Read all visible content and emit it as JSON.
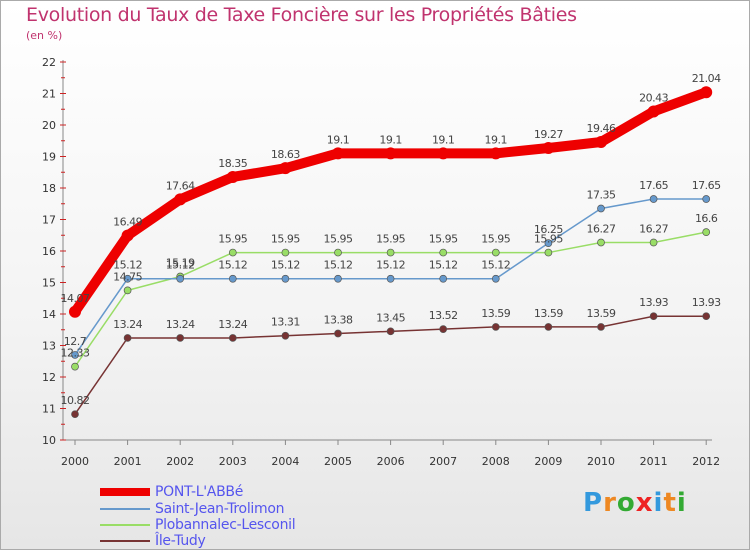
{
  "chart_data": {
    "type": "line",
    "title": "Evolution du Taux de Taxe Foncière sur les Propriétés Bâties",
    "ylabel": "(en %)",
    "xlabel": "",
    "categories": [
      "2000",
      "2001",
      "2002",
      "2003",
      "2004",
      "2005",
      "2006",
      "2007",
      "2008",
      "2009",
      "2010",
      "2011",
      "2012"
    ],
    "yticks": [
      "10",
      "11",
      "12",
      "13",
      "14",
      "15",
      "16",
      "17",
      "18",
      "19",
      "20",
      "21",
      "22"
    ],
    "ylim": [
      10,
      22
    ],
    "series": [
      {
        "name": "PONT-L'ABBé",
        "color": "#ee0000",
        "values": [
          14.07,
          16.49,
          17.64,
          18.35,
          18.63,
          19.1,
          19.1,
          19.1,
          19.1,
          19.27,
          19.46,
          20.43,
          21.04
        ],
        "labels": [
          "14.07",
          "16.49",
          "17.64",
          "18.35",
          "18.63",
          "19.1",
          "19.1",
          "19.1",
          "19.1",
          "19.27",
          "19.46",
          "20.43",
          "21.04"
        ]
      },
      {
        "name": "Saint-Jean-Trolimon",
        "color": "#6699cc",
        "values": [
          12.7,
          15.12,
          15.12,
          15.12,
          15.12,
          15.12,
          15.12,
          15.12,
          15.12,
          16.25,
          17.35,
          17.65,
          17.65
        ],
        "labels": [
          "12.7",
          "15.12",
          "15.12",
          "15.12",
          "15.12",
          "15.12",
          "15.12",
          "15.12",
          "15.12",
          "16.25",
          "17.35",
          "17.65",
          "17.65"
        ]
      },
      {
        "name": "Plobannalec-Lesconil",
        "color": "#99dd66",
        "values": [
          12.33,
          14.75,
          15.19,
          15.95,
          15.95,
          15.95,
          15.95,
          15.95,
          15.95,
          15.95,
          16.27,
          16.27,
          16.6
        ],
        "labels": [
          "12.33",
          "14.75",
          "15.19",
          "15.95",
          "15.95",
          "15.95",
          "15.95",
          "15.95",
          "15.95",
          "15.95",
          "16.27",
          "16.27",
          "16.6"
        ]
      },
      {
        "name": "Île-Tudy",
        "color": "#773333",
        "values": [
          10.82,
          13.24,
          13.24,
          13.24,
          13.31,
          13.38,
          13.45,
          13.52,
          13.59,
          13.59,
          13.59,
          13.93,
          13.93
        ],
        "labels": [
          "10.82",
          "13.24",
          "13.24",
          "13.24",
          "13.31",
          "13.38",
          "13.45",
          "13.52",
          "13.59",
          "13.59",
          "13.59",
          "13.93",
          "13.93"
        ]
      }
    ]
  },
  "logo": {
    "text": "Proxiti",
    "letters": [
      "P",
      "r",
      "o",
      "x",
      "i",
      "t",
      "i"
    ],
    "colors": [
      "#3399dd",
      "#ee8822",
      "#33aa33",
      "#ee2222",
      "#3399dd",
      "#ee8822",
      "#33aa33"
    ]
  }
}
